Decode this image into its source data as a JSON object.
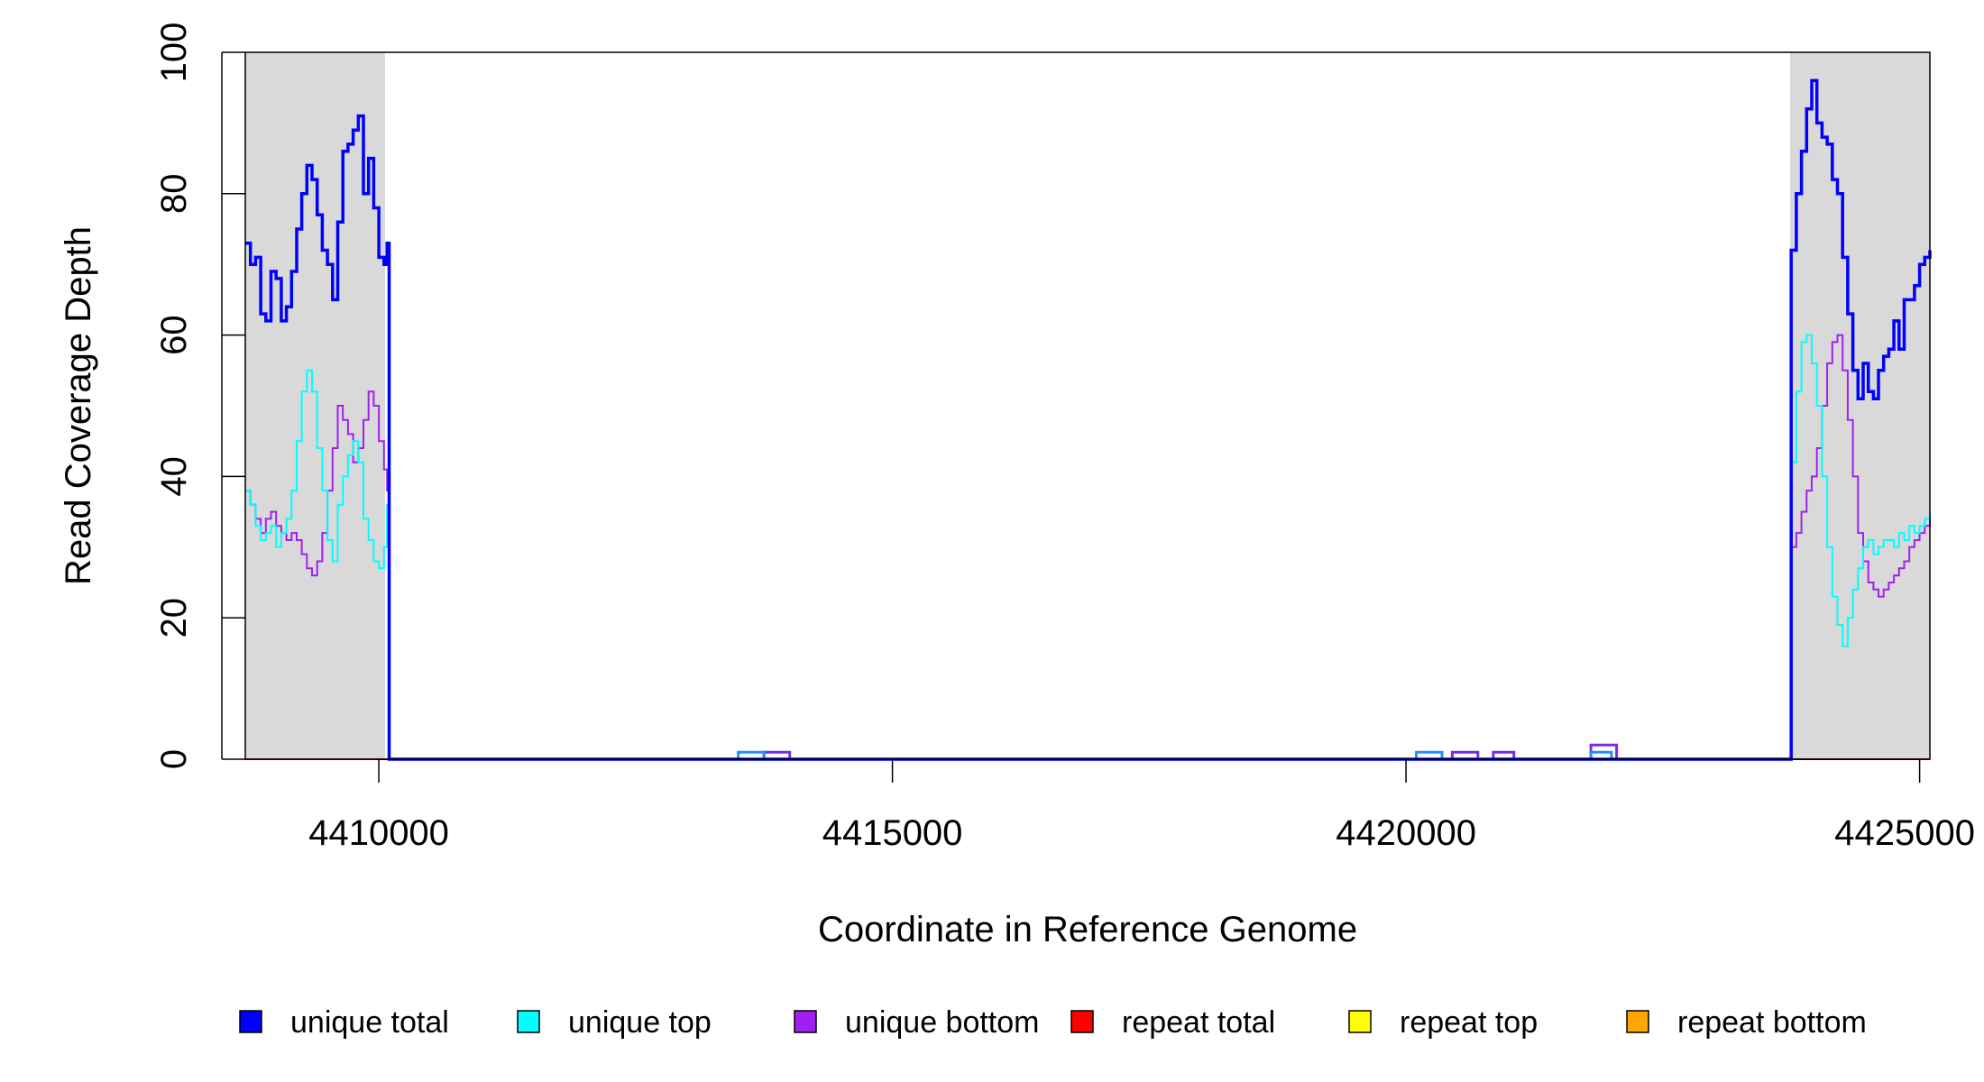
{
  "chart_data": {
    "type": "line",
    "title": "",
    "xlabel": "Coordinate in Reference Genome",
    "ylabel": "Read Coverage Depth",
    "xlim": [
      4408700,
      4425100
    ],
    "ylim": [
      0,
      100
    ],
    "x_ticks": [
      4410000,
      4415000,
      4420000,
      4425000
    ],
    "x_tick_labels": [
      "4410000",
      "4415000",
      "4420000",
      "4425000"
    ],
    "y_ticks": [
      0,
      20,
      40,
      60,
      80,
      100
    ],
    "y_tick_labels": [
      "0",
      "20",
      "40",
      "60",
      "80",
      "100"
    ],
    "grid": false,
    "legend_position": "bottom",
    "shaded_regions": [
      {
        "start": 4408700,
        "end": 4410060
      },
      {
        "start": 4423740,
        "end": 4425100
      }
    ],
    "series": [
      {
        "name": "unique total",
        "color": "#0000ff",
        "points": [
          [
            4408700,
            73
          ],
          [
            4408750,
            70
          ],
          [
            4408800,
            71
          ],
          [
            4408850,
            63
          ],
          [
            4408900,
            62
          ],
          [
            4408950,
            69
          ],
          [
            4409000,
            68
          ],
          [
            4409050,
            62
          ],
          [
            4409100,
            64
          ],
          [
            4409150,
            69
          ],
          [
            4409200,
            75
          ],
          [
            4409250,
            80
          ],
          [
            4409300,
            84
          ],
          [
            4409350,
            82
          ],
          [
            4409400,
            77
          ],
          [
            4409450,
            72
          ],
          [
            4409500,
            70
          ],
          [
            4409550,
            65
          ],
          [
            4409600,
            76
          ],
          [
            4409650,
            86
          ],
          [
            4409700,
            87
          ],
          [
            4409750,
            89
          ],
          [
            4409800,
            91
          ],
          [
            4409850,
            80
          ],
          [
            4409900,
            85
          ],
          [
            4409950,
            78
          ],
          [
            4410000,
            71
          ],
          [
            4410050,
            70
          ],
          [
            4410080,
            73
          ],
          [
            4410100,
            0
          ],
          [
            4423740,
            0
          ],
          [
            4423750,
            72
          ],
          [
            4423800,
            80
          ],
          [
            4423850,
            86
          ],
          [
            4423900,
            92
          ],
          [
            4423950,
            96
          ],
          [
            4424000,
            90
          ],
          [
            4424050,
            88
          ],
          [
            4424100,
            87
          ],
          [
            4424150,
            82
          ],
          [
            4424200,
            80
          ],
          [
            4424250,
            71
          ],
          [
            4424300,
            63
          ],
          [
            4424350,
            55
          ],
          [
            4424400,
            51
          ],
          [
            4424450,
            56
          ],
          [
            4424500,
            52
          ],
          [
            4424550,
            51
          ],
          [
            4424600,
            55
          ],
          [
            4424650,
            57
          ],
          [
            4424700,
            58
          ],
          [
            4424750,
            62
          ],
          [
            4424800,
            58
          ],
          [
            4424850,
            65
          ],
          [
            4424900,
            65
          ],
          [
            4424950,
            67
          ],
          [
            4425000,
            70
          ],
          [
            4425050,
            71
          ],
          [
            4425100,
            72
          ]
        ]
      },
      {
        "name": "unique top",
        "color": "#00ffff",
        "points": [
          [
            4408700,
            38
          ],
          [
            4408750,
            36
          ],
          [
            4408800,
            33
          ],
          [
            4408850,
            31
          ],
          [
            4408900,
            32
          ],
          [
            4408950,
            33
          ],
          [
            4409000,
            30
          ],
          [
            4409050,
            32
          ],
          [
            4409100,
            34
          ],
          [
            4409150,
            38
          ],
          [
            4409200,
            45
          ],
          [
            4409250,
            52
          ],
          [
            4409300,
            55
          ],
          [
            4409350,
            52
          ],
          [
            4409400,
            44
          ],
          [
            4409450,
            38
          ],
          [
            4409500,
            31
          ],
          [
            4409550,
            28
          ],
          [
            4409600,
            36
          ],
          [
            4409650,
            40
          ],
          [
            4409700,
            43
          ],
          [
            4409750,
            45
          ],
          [
            4409800,
            42
          ],
          [
            4409850,
            34
          ],
          [
            4409900,
            31
          ],
          [
            4409950,
            28
          ],
          [
            4410000,
            27
          ],
          [
            4410050,
            30
          ],
          [
            4410080,
            36
          ],
          [
            4410100,
            0
          ],
          [
            4423740,
            0
          ],
          [
            4423750,
            42
          ],
          [
            4423800,
            52
          ],
          [
            4423850,
            59
          ],
          [
            4423900,
            60
          ],
          [
            4423950,
            56
          ],
          [
            4424000,
            50
          ],
          [
            4424050,
            40
          ],
          [
            4424100,
            30
          ],
          [
            4424150,
            23
          ],
          [
            4424200,
            19
          ],
          [
            4424250,
            16
          ],
          [
            4424300,
            20
          ],
          [
            4424350,
            24
          ],
          [
            4424400,
            27
          ],
          [
            4424450,
            30
          ],
          [
            4424500,
            31
          ],
          [
            4424550,
            29
          ],
          [
            4424600,
            30
          ],
          [
            4424650,
            31
          ],
          [
            4424700,
            31
          ],
          [
            4424750,
            30
          ],
          [
            4424800,
            32
          ],
          [
            4424850,
            31
          ],
          [
            4424900,
            33
          ],
          [
            4424950,
            32
          ],
          [
            4425000,
            33
          ],
          [
            4425050,
            34
          ],
          [
            4425100,
            35
          ]
        ]
      },
      {
        "name": "unique bottom",
        "color": "#a020f0",
        "points": [
          [
            4408700,
            38
          ],
          [
            4408750,
            36
          ],
          [
            4408800,
            34
          ],
          [
            4408850,
            32
          ],
          [
            4408900,
            34
          ],
          [
            4408950,
            35
          ],
          [
            4409000,
            33
          ],
          [
            4409050,
            32
          ],
          [
            4409100,
            31
          ],
          [
            4409150,
            32
          ],
          [
            4409200,
            31
          ],
          [
            4409250,
            29
          ],
          [
            4409300,
            27
          ],
          [
            4409350,
            26
          ],
          [
            4409400,
            28
          ],
          [
            4409450,
            32
          ],
          [
            4409500,
            38
          ],
          [
            4409550,
            44
          ],
          [
            4409600,
            50
          ],
          [
            4409650,
            48
          ],
          [
            4409700,
            46
          ],
          [
            4409750,
            42
          ],
          [
            4409800,
            44
          ],
          [
            4409850,
            48
          ],
          [
            4409900,
            52
          ],
          [
            4409950,
            50
          ],
          [
            4410000,
            45
          ],
          [
            4410050,
            41
          ],
          [
            4410080,
            38
          ],
          [
            4410100,
            0
          ],
          [
            4423740,
            0
          ],
          [
            4423750,
            30
          ],
          [
            4423800,
            32
          ],
          [
            4423850,
            35
          ],
          [
            4423900,
            38
          ],
          [
            4423950,
            40
          ],
          [
            4424000,
            44
          ],
          [
            4424050,
            50
          ],
          [
            4424100,
            56
          ],
          [
            4424150,
            59
          ],
          [
            4424200,
            60
          ],
          [
            4424250,
            55
          ],
          [
            4424300,
            48
          ],
          [
            4424350,
            40
          ],
          [
            4424400,
            32
          ],
          [
            4424450,
            28
          ],
          [
            4424500,
            25
          ],
          [
            4424550,
            24
          ],
          [
            4424600,
            23
          ],
          [
            4424650,
            24
          ],
          [
            4424700,
            25
          ],
          [
            4424750,
            26
          ],
          [
            4424800,
            27
          ],
          [
            4424850,
            28
          ],
          [
            4424900,
            30
          ],
          [
            4424950,
            31
          ],
          [
            4425000,
            32
          ],
          [
            4425050,
            33
          ],
          [
            4425100,
            34
          ]
        ]
      },
      {
        "name": "unique top (blips)",
        "color": "#1e90ff",
        "points": [
          [
            4410100,
            0
          ],
          [
            4413500,
            0
          ],
          [
            4413500,
            1
          ],
          [
            4413750,
            1
          ],
          [
            4413750,
            0
          ],
          [
            4420100,
            0
          ],
          [
            4420100,
            1
          ],
          [
            4420350,
            1
          ],
          [
            4420350,
            0
          ],
          [
            4421800,
            0
          ],
          [
            4421800,
            1
          ],
          [
            4422000,
            1
          ],
          [
            4422000,
            0
          ],
          [
            4423740,
            0
          ]
        ]
      },
      {
        "name": "unique bottom (blips)",
        "color": "#7b2be2",
        "points": [
          [
            4410100,
            0
          ],
          [
            4413750,
            0
          ],
          [
            4413750,
            1
          ],
          [
            4414000,
            1
          ],
          [
            4414000,
            0
          ],
          [
            4420450,
            0
          ],
          [
            4420450,
            1
          ],
          [
            4420700,
            1
          ],
          [
            4420700,
            0
          ],
          [
            4420850,
            0
          ],
          [
            4420850,
            1
          ],
          [
            4421050,
            1
          ],
          [
            4421050,
            0
          ],
          [
            4421800,
            0
          ],
          [
            4421800,
            2
          ],
          [
            4422050,
            2
          ],
          [
            4422050,
            0
          ],
          [
            4423740,
            0
          ]
        ]
      },
      {
        "name": "repeat total",
        "color": "#ff0000",
        "points": [
          [
            4408700,
            0
          ],
          [
            4425100,
            0
          ]
        ]
      },
      {
        "name": "repeat top",
        "color": "#ffff00",
        "points": [
          [
            4408700,
            0
          ],
          [
            4425100,
            0
          ]
        ]
      },
      {
        "name": "repeat bottom",
        "color": "#ffa500",
        "points": [
          [
            4408700,
            0
          ],
          [
            4425100,
            0
          ]
        ]
      }
    ],
    "legend": [
      {
        "label": "unique total",
        "color": "#0000ff"
      },
      {
        "label": "unique top",
        "color": "#00ffff"
      },
      {
        "label": "unique bottom",
        "color": "#a020f0"
      },
      {
        "label": "repeat total",
        "color": "#ff0000"
      },
      {
        "label": "repeat top",
        "color": "#ffff00"
      },
      {
        "label": "repeat bottom",
        "color": "#ffa500"
      }
    ]
  }
}
